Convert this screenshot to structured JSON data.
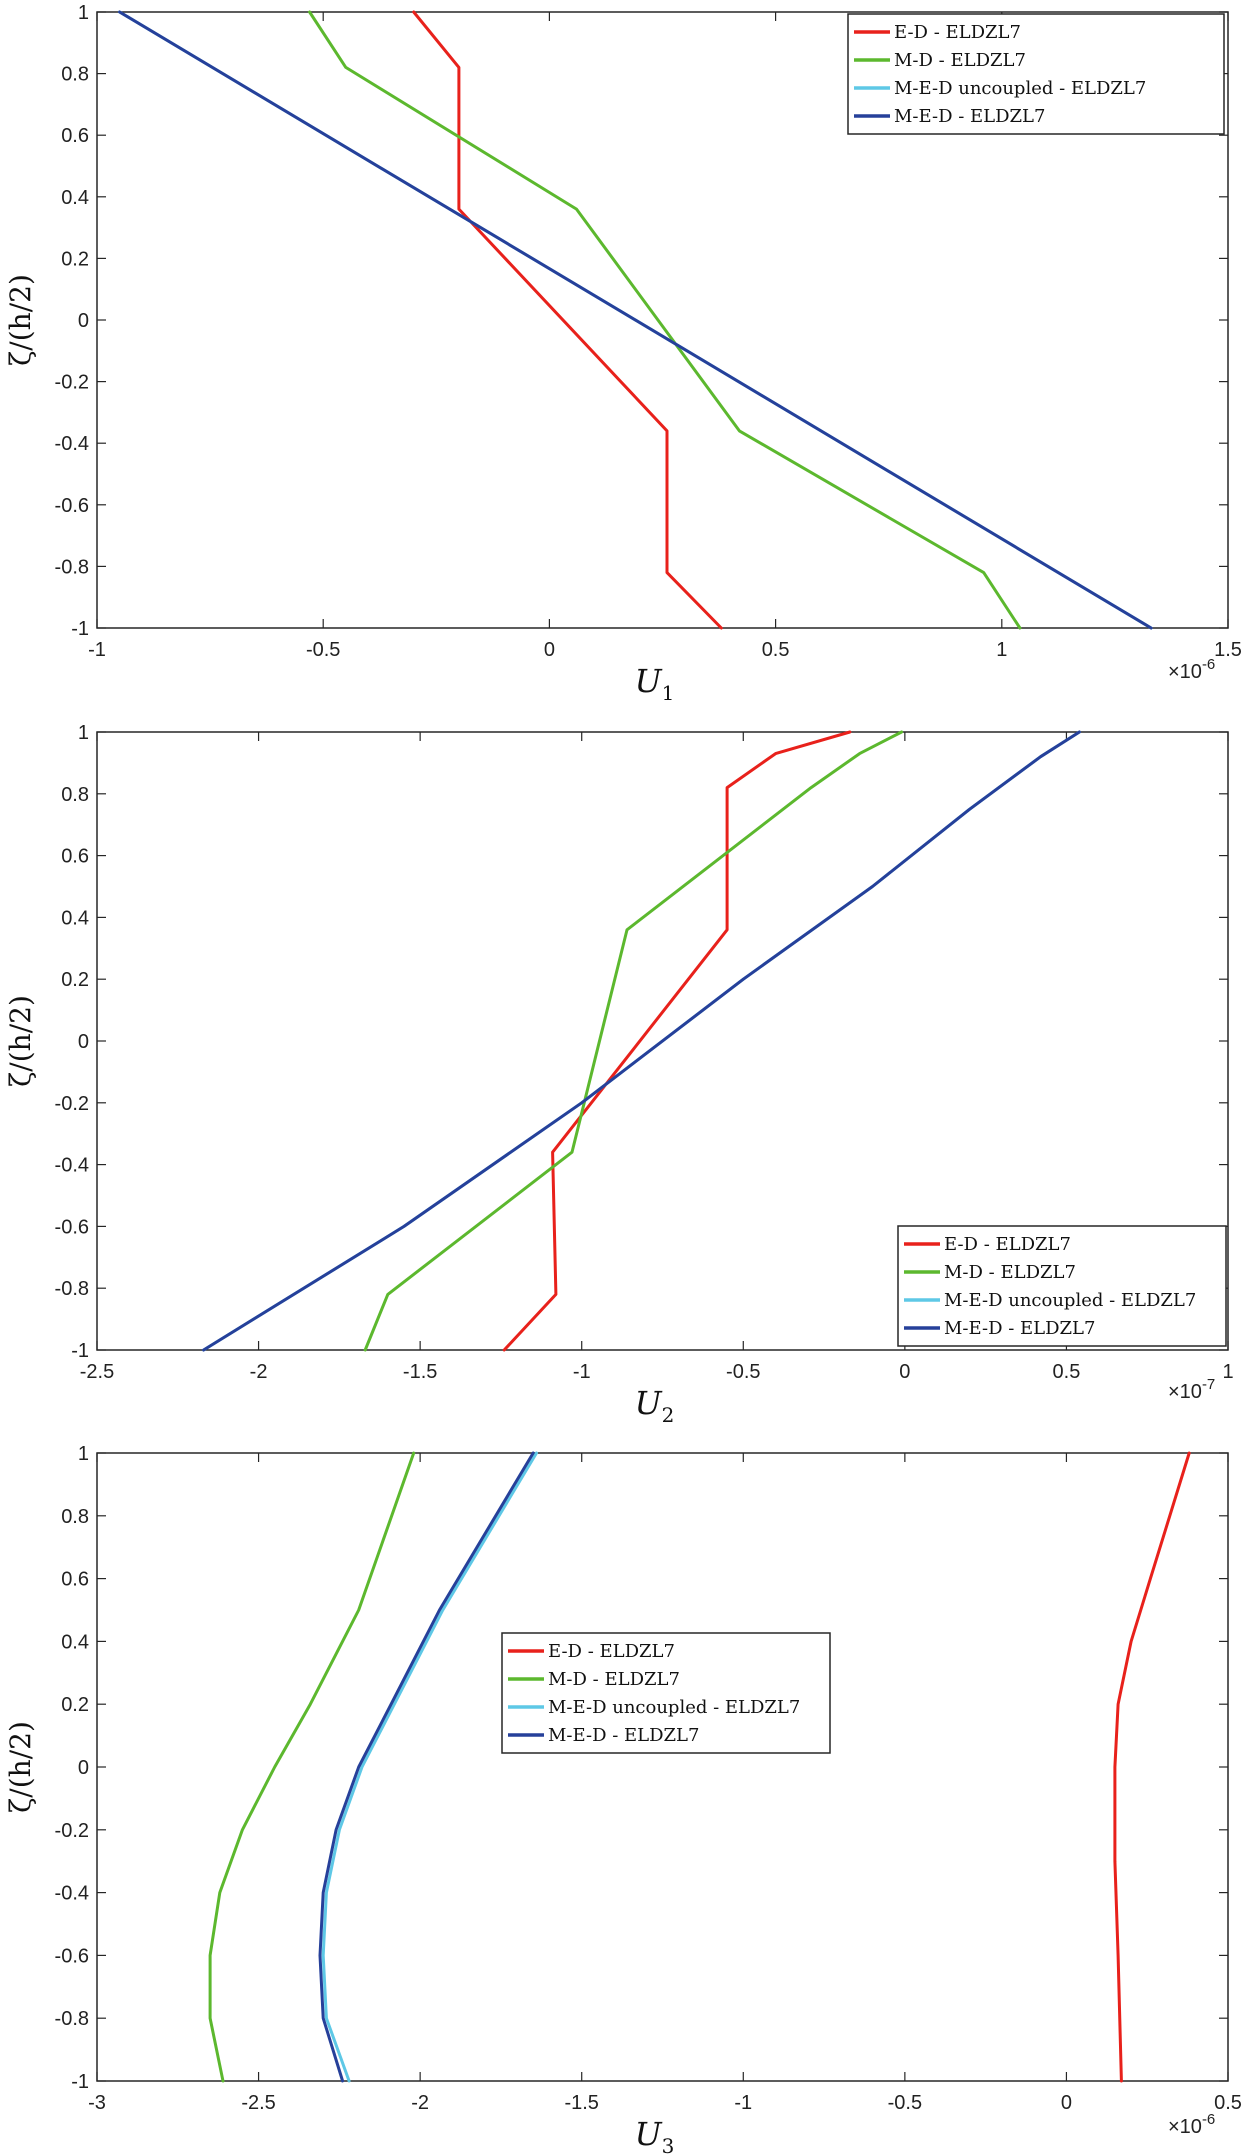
{
  "chart_data": [
    {
      "type": "line",
      "xlabel": "U",
      "xlabel_sub": "1",
      "ylabel": "ζ/(h/2)",
      "xmultiplier": "×10",
      "xmultiplier_exp": "-6",
      "xlim": [
        -1,
        1.5
      ],
      "ylim": [
        -1,
        1
      ],
      "xticks": [
        -1,
        -0.5,
        0,
        0.5,
        1,
        1.5
      ],
      "xticklabels": [
        "-1",
        "-0.5",
        "0",
        "0.5",
        "1",
        "1.5"
      ],
      "yticks": [
        -1,
        -0.8,
        -0.6,
        -0.4,
        -0.2,
        0,
        0.2,
        0.4,
        0.6,
        0.8,
        1
      ],
      "yticklabels": [
        "-1",
        "-0.8",
        "-0.6",
        "-0.4",
        "-0.2",
        "0",
        "0.2",
        "0.4",
        "0.6",
        "0.8",
        "1"
      ],
      "legend_position": "top-right",
      "series": [
        {
          "name": "E-D - ELDZL7",
          "color": "#e8211b",
          "x": [
            0.38,
            0.26,
            0.26,
            -0.2,
            -0.2,
            -0.3
          ],
          "y": [
            -1,
            -0.82,
            -0.36,
            0.36,
            0.82,
            1
          ]
        },
        {
          "name": "M-D - ELDZL7",
          "color": "#5cb82e",
          "x": [
            1.04,
            0.96,
            0.42,
            0.06,
            -0.45,
            -0.53
          ],
          "y": [
            -1,
            -0.82,
            -0.36,
            0.36,
            0.82,
            1
          ]
        },
        {
          "name": "M-E-D uncoupled - ELDZL7",
          "color": "#5ec8e6",
          "x": [
            1.33,
            -0.95
          ],
          "y": [
            -1,
            1
          ]
        },
        {
          "name": "M-E-D - ELDZL7",
          "color": "#26409a",
          "x": [
            1.33,
            -0.95
          ],
          "y": [
            -1,
            1
          ]
        }
      ]
    },
    {
      "type": "line",
      "xlabel": "U",
      "xlabel_sub": "2",
      "ylabel": "ζ/(h/2)",
      "xmultiplier": "×10",
      "xmultiplier_exp": "-7",
      "xlim": [
        -2.5,
        1
      ],
      "ylim": [
        -1,
        1
      ],
      "xticks": [
        -2.5,
        -2,
        -1.5,
        -1,
        -0.5,
        0,
        0.5,
        1
      ],
      "xticklabels": [
        "-2.5",
        "-2",
        "-1.5",
        "-1",
        "-0.5",
        "0",
        "0.5",
        "1"
      ],
      "yticks": [
        -1,
        -0.8,
        -0.6,
        -0.4,
        -0.2,
        0,
        0.2,
        0.4,
        0.6,
        0.8,
        1
      ],
      "yticklabels": [
        "-1",
        "-0.8",
        "-0.6",
        "-0.4",
        "-0.2",
        "0",
        "0.2",
        "0.4",
        "0.6",
        "0.8",
        "1"
      ],
      "legend_position": "bottom-right",
      "series": [
        {
          "name": "E-D - ELDZL7",
          "color": "#e8211b",
          "x": [
            -1.24,
            -1.08,
            -1.09,
            -0.55,
            -0.55,
            -0.4,
            -0.17
          ],
          "y": [
            -1,
            -0.82,
            -0.36,
            0.36,
            0.82,
            0.93,
            1
          ]
        },
        {
          "name": "M-D - ELDZL7",
          "color": "#5cb82e",
          "x": [
            -1.67,
            -1.6,
            -1.03,
            -0.86,
            -0.29,
            -0.14,
            -0.01
          ],
          "y": [
            -1,
            -0.82,
            -0.36,
            0.36,
            0.82,
            0.93,
            1
          ]
        },
        {
          "name": "M-E-D uncoupled - ELDZL7",
          "color": "#5ec8e6",
          "x": [
            -2.17,
            -1.55,
            -1.0,
            -0.5,
            -0.1,
            0.2,
            0.42,
            0.54
          ],
          "y": [
            -1,
            -0.6,
            -0.2,
            0.2,
            0.5,
            0.75,
            0.92,
            1
          ]
        },
        {
          "name": "M-E-D - ELDZL7",
          "color": "#26409a",
          "x": [
            -2.17,
            -1.55,
            -1.0,
            -0.5,
            -0.1,
            0.2,
            0.42,
            0.54
          ],
          "y": [
            -1,
            -0.6,
            -0.2,
            0.2,
            0.5,
            0.75,
            0.92,
            1
          ]
        }
      ]
    },
    {
      "type": "line",
      "xlabel": "U",
      "xlabel_sub": "3",
      "ylabel": "ζ/(h/2)",
      "xmultiplier": "×10",
      "xmultiplier_exp": "-6",
      "xlim": [
        -3,
        0.5
      ],
      "ylim": [
        -1,
        1
      ],
      "xticks": [
        -3,
        -2.5,
        -2,
        -1.5,
        -1,
        -0.5,
        0,
        0.5
      ],
      "xticklabels": [
        "-3",
        "-2.5",
        "-2",
        "-1.5",
        "-1",
        "-0.5",
        "0",
        "0.5"
      ],
      "yticks": [
        -1,
        -0.8,
        -0.6,
        -0.4,
        -0.2,
        0,
        0.2,
        0.4,
        0.6,
        0.8,
        1
      ],
      "yticklabels": [
        "-1",
        "-0.8",
        "-0.6",
        "-0.4",
        "-0.2",
        "0",
        "0.2",
        "0.4",
        "0.6",
        "0.8",
        "1"
      ],
      "legend_position": "center",
      "series": [
        {
          "name": "E-D - ELDZL7",
          "color": "#e8211b",
          "x": [
            0.17,
            0.16,
            0.15,
            0.15,
            0.16,
            0.2,
            0.26,
            0.32,
            0.38
          ],
          "y": [
            -1,
            -0.6,
            -0.3,
            0,
            0.2,
            0.4,
            0.6,
            0.8,
            1
          ]
        },
        {
          "name": "M-D - ELDZL7",
          "color": "#5cb82e",
          "x": [
            -2.61,
            -2.65,
            -2.65,
            -2.62,
            -2.55,
            -2.45,
            -2.34,
            -2.19,
            -2.02
          ],
          "y": [
            -1,
            -0.8,
            -0.6,
            -0.4,
            -0.2,
            0,
            0.2,
            0.5,
            1
          ]
        },
        {
          "name": "M-E-D uncoupled - ELDZL7",
          "color": "#5ec8e6",
          "x": [
            -2.22,
            -2.29,
            -2.3,
            -2.29,
            -2.25,
            -2.18,
            -2.08,
            -1.93,
            -1.64
          ],
          "y": [
            -1,
            -0.8,
            -0.6,
            -0.4,
            -0.2,
            0,
            0.2,
            0.5,
            1
          ]
        },
        {
          "name": "M-E-D - ELDZL7",
          "color": "#26409a",
          "x": [
            -2.24,
            -2.3,
            -2.31,
            -2.3,
            -2.26,
            -2.19,
            -2.09,
            -1.94,
            -1.65
          ],
          "y": [
            -1,
            -0.8,
            -0.6,
            -0.4,
            -0.2,
            0,
            0.2,
            0.5,
            1
          ]
        }
      ]
    }
  ]
}
